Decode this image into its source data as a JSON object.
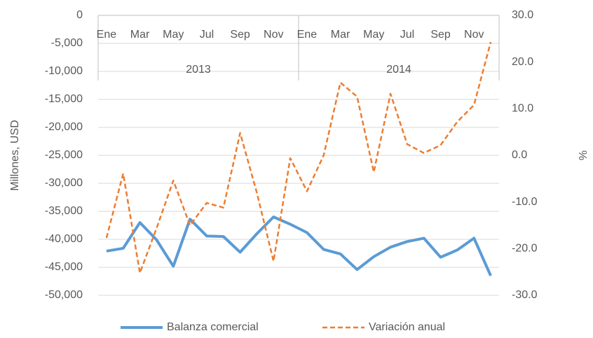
{
  "chart_data": {
    "type": "line",
    "categories": [
      "Ene",
      null,
      "Mar",
      null,
      "May",
      null,
      "Jul",
      null,
      "Sep",
      null,
      "Nov",
      null,
      "Ene",
      null,
      "Mar",
      null,
      "May",
      null,
      "Jul",
      null,
      "Sep",
      null,
      "Nov",
      null
    ],
    "category_groups": [
      "2013",
      "2014"
    ],
    "ylabel": "Millones, USD",
    "y2label": "%",
    "ylim": [
      -50000,
      0
    ],
    "yticks": [
      0,
      {
        "value": -5000,
        "label": "-5,000"
      },
      {
        "value": -10000,
        "label": "-10,000"
      },
      {
        "value": -15000,
        "label": "-15,000"
      },
      {
        "value": -20000,
        "label": "-20,000"
      },
      {
        "value": -25000,
        "label": "-25,000"
      },
      {
        "value": -30000,
        "label": "-30,000"
      },
      {
        "value": -35000,
        "label": "-35,000"
      },
      {
        "value": -40000,
        "label": "-40,000"
      },
      {
        "value": -45000,
        "label": "-45,000"
      },
      {
        "value": -50000,
        "label": "-50,000"
      }
    ],
    "y2lim": [
      -30,
      30
    ],
    "y2ticks": [
      {
        "value": 30,
        "label": "30.0"
      },
      {
        "value": 20,
        "label": "20.0"
      },
      {
        "value": 10,
        "label": "10.0"
      },
      {
        "value": 0,
        "label": "0.0"
      },
      {
        "value": -10,
        "label": "-10.0"
      },
      {
        "value": -20,
        "label": "-20.0"
      },
      {
        "value": -30,
        "label": "-30.0"
      }
    ],
    "grid": true,
    "legend": "bottom",
    "series": [
      {
        "name": "Balanza comercial",
        "color": "#5b9bd5",
        "style": "solid",
        "values": [
          -42100,
          -41600,
          -37000,
          -40100,
          -44800,
          -36400,
          -39400,
          -39500,
          -42300,
          -39000,
          -36000,
          -37300,
          -38800,
          -41800,
          -42600,
          -45400,
          -43100,
          -41400,
          -40400,
          -39800,
          -43200,
          -41900,
          -39800,
          -46500
        ]
      },
      {
        "name": "Variación anual",
        "color": "#ed7d31",
        "style": "dashed",
        "axis": "y2",
        "values": [
          -17.7,
          -3.9,
          -25.2,
          -15.6,
          -5.4,
          -15.0,
          -10.2,
          -11.2,
          4.8,
          -8.0,
          -22.7,
          -0.6,
          -7.7,
          0.0,
          15.6,
          12.6,
          -3.6,
          13.2,
          2.4,
          0.5,
          2.2,
          7.2,
          10.8,
          24.3
        ]
      }
    ]
  }
}
